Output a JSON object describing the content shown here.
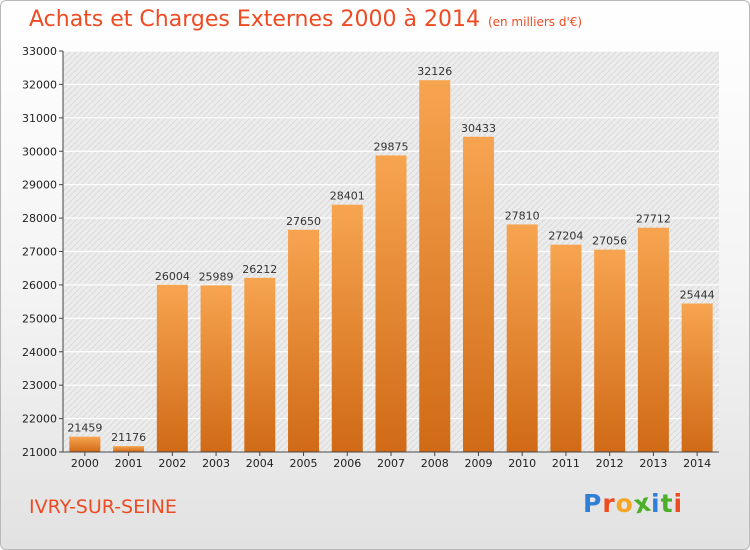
{
  "title": "Achats et Charges Externes 2000 à 2014",
  "unit": "(en milliers d'€)",
  "place": "IVRY-SUR-SEINE",
  "logo": {
    "letters": [
      "P",
      "r",
      "o",
      "x",
      "i",
      "t",
      "i"
    ],
    "colors": [
      "#2f7fd8",
      "#ef4b23",
      "#f5a623",
      "#4caf2a",
      "#2f7fd8",
      "#4caf2a",
      "#ef4b23"
    ]
  },
  "colors": {
    "bar_top": "#f7a450",
    "bar_bottom": "#d06a16",
    "accent": "#ef4b23"
  },
  "chart_data": {
    "type": "bar",
    "title": "Achats et Charges Externes 2000 à 2014",
    "subtitle": "(en milliers d'€)",
    "categories": [
      "2000",
      "2001",
      "2002",
      "2003",
      "2004",
      "2005",
      "2006",
      "2007",
      "2008",
      "2009",
      "2010",
      "2011",
      "2012",
      "2013",
      "2014"
    ],
    "values": [
      21459,
      21176,
      26004,
      25989,
      26212,
      27650,
      28401,
      29875,
      32126,
      30433,
      27810,
      27204,
      27056,
      27712,
      25444
    ],
    "ylim": [
      21000,
      33000
    ],
    "yticks": [
      21000,
      22000,
      23000,
      24000,
      25000,
      26000,
      27000,
      28000,
      29000,
      30000,
      31000,
      32000,
      33000
    ],
    "grid": true,
    "xlabel": "",
    "ylabel": ""
  }
}
